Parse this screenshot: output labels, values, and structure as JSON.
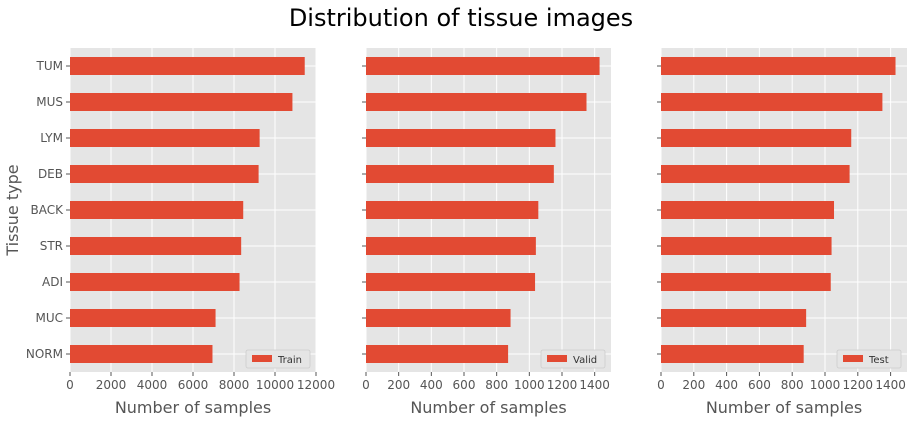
{
  "figure": {
    "title": "Distribution of tissue images"
  },
  "chart_data": [
    {
      "type": "bar",
      "orientation": "horizontal",
      "categories": [
        "NORM",
        "MUC",
        "ADI",
        "STR",
        "BACK",
        "DEB",
        "LYM",
        "MUS",
        "TUM"
      ],
      "series": [
        {
          "name": "Train",
          "values": [
            6950,
            7100,
            8270,
            8350,
            8450,
            9200,
            9250,
            10850,
            11450
          ]
        }
      ],
      "xlabel": "Number of samples",
      "ylabel": "Tissue type",
      "xlim": [
        0,
        12000
      ],
      "xticks": [
        0,
        2000,
        4000,
        6000,
        8000,
        10000,
        12000
      ],
      "grid": true,
      "legend": "lower right",
      "bar_color": "#E24A33"
    },
    {
      "type": "bar",
      "orientation": "horizontal",
      "categories": [
        "NORM",
        "MUC",
        "ADI",
        "STR",
        "BACK",
        "DEB",
        "LYM",
        "MUS",
        "TUM"
      ],
      "series": [
        {
          "name": "Valid",
          "values": [
            870,
            885,
            1035,
            1040,
            1055,
            1150,
            1160,
            1350,
            1430
          ]
        }
      ],
      "xlabel": "Number of samples",
      "ylabel": "",
      "xlim": [
        0,
        1500
      ],
      "xticks": [
        0,
        200,
        400,
        600,
        800,
        1000,
        1200,
        1400
      ],
      "grid": true,
      "legend": "lower right",
      "bar_color": "#E24A33"
    },
    {
      "type": "bar",
      "orientation": "horizontal",
      "categories": [
        "NORM",
        "MUC",
        "ADI",
        "STR",
        "BACK",
        "DEB",
        "LYM",
        "MUS",
        "TUM"
      ],
      "series": [
        {
          "name": "Test",
          "values": [
            870,
            885,
            1035,
            1040,
            1055,
            1150,
            1160,
            1350,
            1430
          ]
        }
      ],
      "xlabel": "Number of samples",
      "ylabel": "",
      "xlim": [
        0,
        1500
      ],
      "xticks": [
        0,
        200,
        400,
        600,
        800,
        1000,
        1200,
        1400
      ],
      "grid": true,
      "legend": "lower right",
      "bar_color": "#E24A33"
    }
  ]
}
